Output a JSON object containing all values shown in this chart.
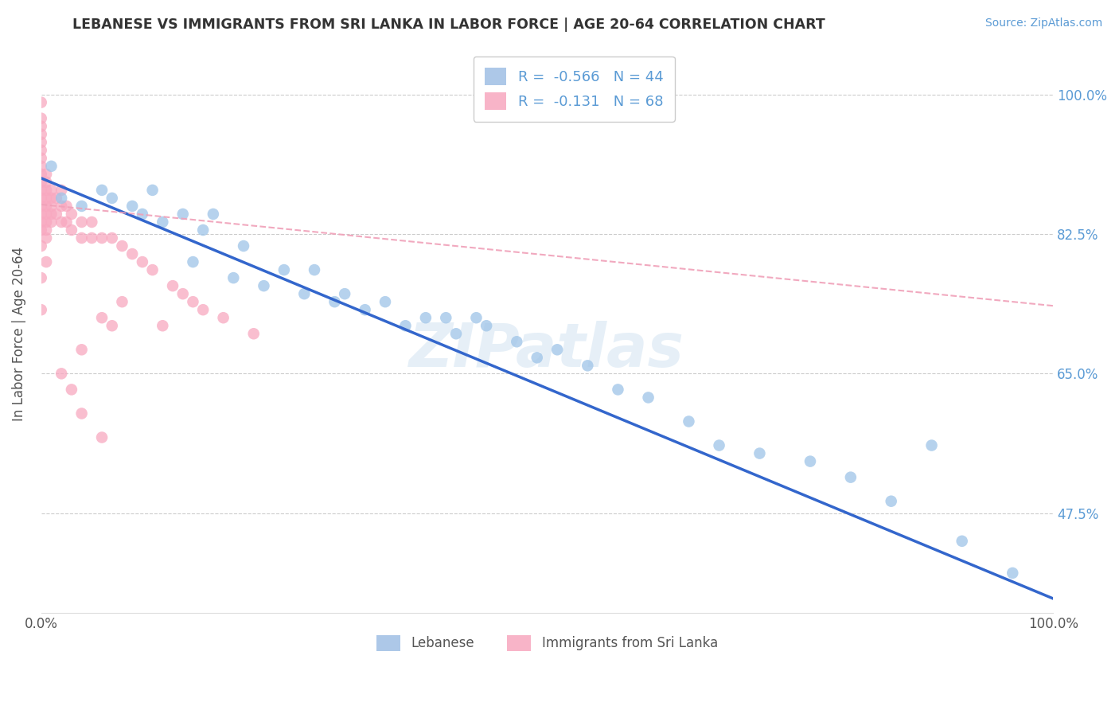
{
  "title": "LEBANESE VS IMMIGRANTS FROM SRI LANKA IN LABOR FORCE | AGE 20-64 CORRELATION CHART",
  "source_text": "Source: ZipAtlas.com",
  "ylabel": "In Labor Force | Age 20-64",
  "xlim": [
    0.0,
    1.0
  ],
  "ylim": [
    0.35,
    1.05
  ],
  "yticks": [
    0.475,
    0.65,
    0.825,
    1.0
  ],
  "ytick_labels": [
    "47.5%",
    "65.0%",
    "82.5%",
    "100.0%"
  ],
  "xticks": [
    0.0,
    1.0
  ],
  "xtick_labels": [
    "0.0%",
    "100.0%"
  ],
  "legend_entries": [
    {
      "label": "R =  -0.566   N = 44",
      "color": "#adc8e8"
    },
    {
      "label": "R =  -0.131   N = 68",
      "color": "#f8b4c8"
    }
  ],
  "watermark": "ZIPatlas",
  "background_color": "#ffffff",
  "grid_color": "#cccccc",
  "title_color": "#333333",
  "axis_label_color": "#555555",
  "source_color": "#5b9bd5",
  "r_value_color": "#5b9bd5",
  "blue_scatter_color": "#9ec4e8",
  "pink_scatter_color": "#f8a8c0",
  "blue_line_color": "#3366cc",
  "pink_line_color": "#f0a0b8",
  "blue_scatter": {
    "x": [
      0.01,
      0.02,
      0.04,
      0.06,
      0.07,
      0.09,
      0.1,
      0.11,
      0.12,
      0.14,
      0.15,
      0.16,
      0.17,
      0.19,
      0.2,
      0.22,
      0.24,
      0.26,
      0.27,
      0.29,
      0.3,
      0.32,
      0.34,
      0.36,
      0.38,
      0.4,
      0.41,
      0.43,
      0.44,
      0.47,
      0.49,
      0.51,
      0.54,
      0.57,
      0.6,
      0.64,
      0.67,
      0.71,
      0.76,
      0.8,
      0.84,
      0.88,
      0.91,
      0.96
    ],
    "y": [
      0.91,
      0.87,
      0.86,
      0.88,
      0.87,
      0.86,
      0.85,
      0.88,
      0.84,
      0.85,
      0.79,
      0.83,
      0.85,
      0.77,
      0.81,
      0.76,
      0.78,
      0.75,
      0.78,
      0.74,
      0.75,
      0.73,
      0.74,
      0.71,
      0.72,
      0.72,
      0.7,
      0.72,
      0.71,
      0.69,
      0.67,
      0.68,
      0.66,
      0.63,
      0.62,
      0.59,
      0.56,
      0.55,
      0.54,
      0.52,
      0.49,
      0.56,
      0.44,
      0.4
    ]
  },
  "pink_scatter": {
    "x": [
      0.0,
      0.0,
      0.0,
      0.0,
      0.0,
      0.0,
      0.0,
      0.0,
      0.0,
      0.0,
      0.0,
      0.0,
      0.0,
      0.0,
      0.0,
      0.0,
      0.005,
      0.005,
      0.005,
      0.005,
      0.005,
      0.005,
      0.005,
      0.005,
      0.005,
      0.01,
      0.01,
      0.01,
      0.01,
      0.01,
      0.015,
      0.015,
      0.02,
      0.02,
      0.02,
      0.025,
      0.025,
      0.03,
      0.03,
      0.04,
      0.04,
      0.05,
      0.05,
      0.06,
      0.07,
      0.08,
      0.09,
      0.1,
      0.11,
      0.13,
      0.14,
      0.16,
      0.18,
      0.21,
      0.06,
      0.04,
      0.08,
      0.07,
      0.12,
      0.15,
      0.02,
      0.03,
      0.04,
      0.06,
      0.0,
      0.0,
      0.005,
      0.0
    ],
    "y": [
      0.99,
      0.97,
      0.96,
      0.95,
      0.94,
      0.93,
      0.92,
      0.91,
      0.9,
      0.89,
      0.88,
      0.87,
      0.86,
      0.85,
      0.84,
      0.83,
      0.9,
      0.89,
      0.88,
      0.87,
      0.86,
      0.85,
      0.84,
      0.83,
      0.82,
      0.88,
      0.87,
      0.86,
      0.85,
      0.84,
      0.87,
      0.85,
      0.88,
      0.86,
      0.84,
      0.86,
      0.84,
      0.85,
      0.83,
      0.84,
      0.82,
      0.84,
      0.82,
      0.82,
      0.82,
      0.81,
      0.8,
      0.79,
      0.78,
      0.76,
      0.75,
      0.73,
      0.72,
      0.7,
      0.72,
      0.68,
      0.74,
      0.71,
      0.71,
      0.74,
      0.65,
      0.63,
      0.6,
      0.57,
      0.73,
      0.77,
      0.79,
      0.81
    ]
  },
  "blue_trendline": {
    "x": [
      0.0,
      1.0
    ],
    "y": [
      0.895,
      0.368
    ]
  },
  "pink_trendline": {
    "x": [
      0.0,
      1.0
    ],
    "y": [
      0.862,
      0.735
    ]
  },
  "legend_bottom": [
    {
      "label": "Lebanese",
      "color": "#adc8e8"
    },
    {
      "label": "Immigrants from Sri Lanka",
      "color": "#f8b4c8"
    }
  ]
}
